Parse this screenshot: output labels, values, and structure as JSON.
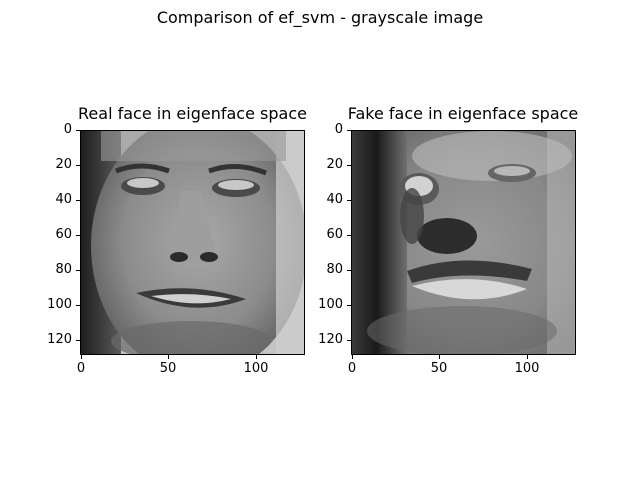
{
  "figure": {
    "title": "Comparison of ef_svm - grayscale image"
  },
  "panels": [
    {
      "title": "Real face in eigenface space",
      "yticks": [
        "0",
        "20",
        "40",
        "60",
        "80",
        "100",
        "120"
      ],
      "xticks": [
        "0",
        "50",
        "100"
      ]
    },
    {
      "title": "Fake face in eigenface space",
      "yticks": [
        "0",
        "20",
        "40",
        "60",
        "80",
        "100",
        "120"
      ],
      "xticks": [
        "0",
        "50",
        "100"
      ]
    }
  ],
  "image_size": [
    128,
    128
  ]
}
